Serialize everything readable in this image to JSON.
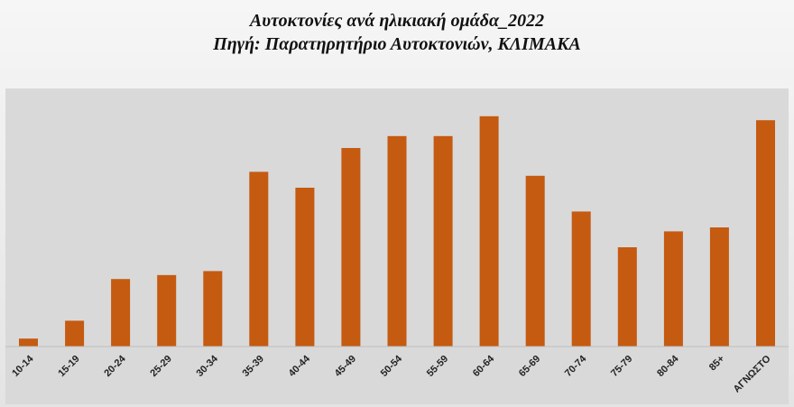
{
  "chart_data": {
    "type": "bar",
    "title": "Αυτοκτονίες ανά ηλικιακή ομάδα_2022",
    "subtitle": "Πηγή: Παρατηρητήριο Αυτοκτονιών, ΚΛΙΜΑΚΑ",
    "xlabel": "",
    "ylabel": "",
    "grid": false,
    "legend": "none",
    "bar_color": "#C55A11",
    "categories": [
      "10-14",
      "15-19",
      "20-24",
      "25-29",
      "30-34",
      "35-39",
      "40-44",
      "45-49",
      "50-54",
      "55-59",
      "60-64",
      "65-69",
      "70-74",
      "75-79",
      "80-84",
      "85+",
      "ΑΓΝΩΣΤΟ"
    ],
    "values": [
      2,
      6.5,
      17,
      18,
      19,
      44,
      40,
      50,
      53,
      53,
      58,
      43,
      34,
      25,
      29,
      30,
      57
    ],
    "ylim": [
      0,
      60
    ]
  }
}
